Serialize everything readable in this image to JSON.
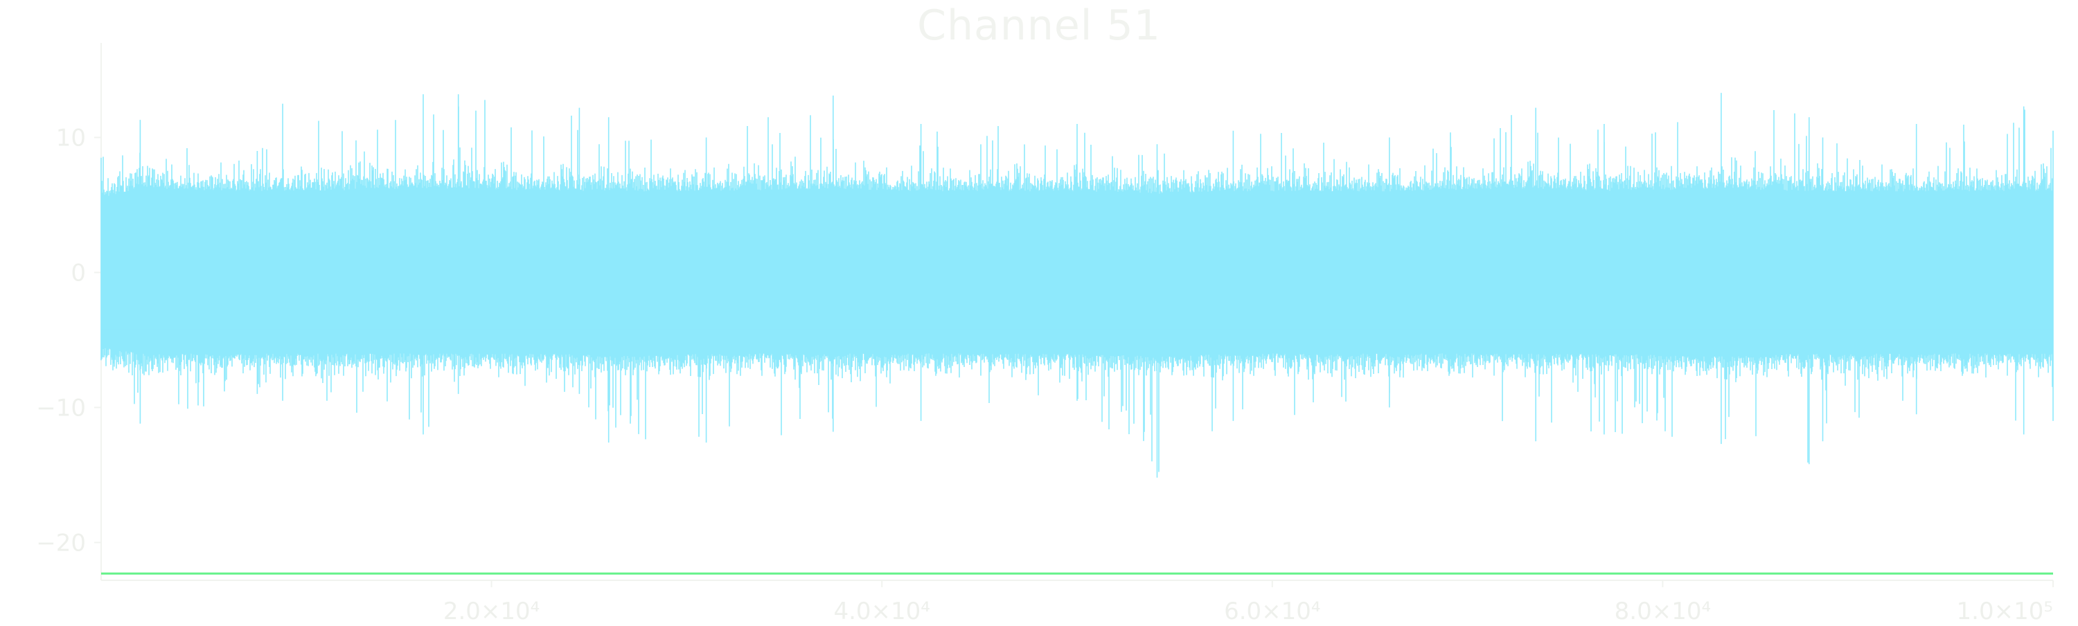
{
  "colors": {
    "background": "#ffffff",
    "signal": "#8ee9fc",
    "baseline": "#66f28a",
    "axis": "#f1f3ef",
    "text": "#eef0ec"
  },
  "chart_data": {
    "type": "line",
    "title": "Channel 51",
    "xlabel": "",
    "ylabel": "",
    "xlim": [
      0,
      100000
    ],
    "ylim": [
      -22.8,
      17
    ],
    "x_ticks": [
      {
        "value": 20000,
        "label": "2.0×10⁴"
      },
      {
        "value": 40000,
        "label": "4.0×10⁴"
      },
      {
        "value": 60000,
        "label": "6.0×10⁴"
      },
      {
        "value": 80000,
        "label": "8.0×10⁴"
      },
      {
        "value": 100000,
        "label": "1.0×10⁵"
      }
    ],
    "y_ticks": [
      {
        "value": 10,
        "label": "10"
      },
      {
        "value": 0,
        "label": "0"
      },
      {
        "value": -10,
        "label": "−10"
      },
      {
        "value": -20,
        "label": "−20"
      }
    ],
    "grid": false,
    "series": [
      {
        "kind": "noise-signal",
        "envelope": {
          "x": [
            0,
            2000,
            8000,
            9300,
            16500,
            18300,
            24500,
            26000,
            31000,
            37500,
            42000,
            50000,
            54100,
            58000,
            66000,
            73500,
            77000,
            83000,
            87500,
            88200,
            93000,
            98500,
            100000
          ],
          "max": [
            8.5,
            11.3,
            9.0,
            12.5,
            13.2,
            13.2,
            12.2,
            11.5,
            10.0,
            13.1,
            11.0,
            11.0,
            9.5,
            10.5,
            10.0,
            12.2,
            11.0,
            13.3,
            11.5,
            10.0,
            11.0,
            12.3,
            10.5
          ],
          "min": [
            -6.5,
            -11.2,
            -9.0,
            -9.5,
            -12.0,
            -9.0,
            -9.0,
            -12.6,
            -12.6,
            -11.8,
            -11.0,
            -9.5,
            -15.2,
            -11.0,
            -10.0,
            -12.5,
            -12.0,
            -12.7,
            -14.2,
            -12.5,
            -10.5,
            -12.0,
            -11.0
          ],
          "dense_max": [
            5.5,
            6.2,
            6.0,
            6.0,
            6.2,
            6.2,
            6.0,
            6.0,
            6.0,
            6.2,
            6.0,
            6.0,
            5.8,
            6.0,
            6.0,
            6.2,
            6.0,
            6.2,
            6.0,
            6.0,
            6.0,
            6.0,
            6.0
          ],
          "dense_min": [
            -5.5,
            -6.0,
            -6.0,
            -6.0,
            -6.0,
            -6.0,
            -6.0,
            -6.2,
            -6.0,
            -6.0,
            -6.0,
            -6.0,
            -6.2,
            -6.0,
            -6.0,
            -6.0,
            -6.0,
            -6.2,
            -6.0,
            -6.0,
            -6.0,
            -6.0,
            -6.0
          ]
        }
      },
      {
        "kind": "constant-line",
        "x": [
          0,
          100000
        ],
        "values": [
          -22.3,
          -22.3
        ]
      }
    ]
  }
}
